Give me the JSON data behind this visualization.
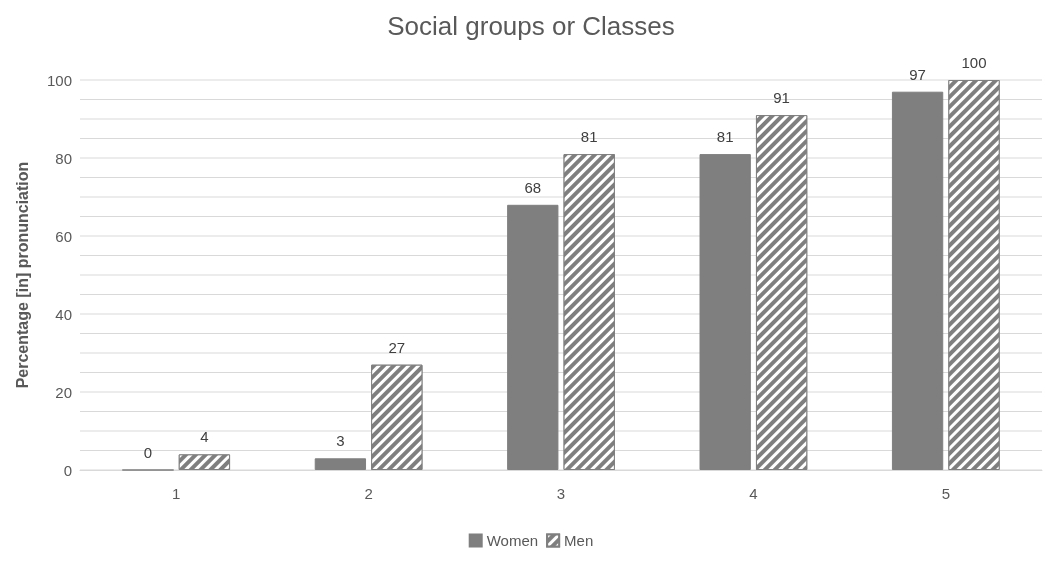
{
  "chart_data": {
    "type": "bar",
    "title": "Social groups or Classes",
    "ylabel": "Percentage [in] pronunciation",
    "categories": [
      "1",
      "2",
      "3",
      "4",
      "5"
    ],
    "series": [
      {
        "name": "Women",
        "color": "#7f7f7f",
        "values": [
          0,
          3,
          68,
          81,
          97
        ]
      },
      {
        "name": "Men",
        "color": "#7f7f7f",
        "values": [
          4,
          27,
          81,
          91,
          100
        ]
      }
    ],
    "ylim": [
      0,
      100
    ],
    "yticks": [
      0,
      {
        "value": 5,
        "label": null
      },
      {
        "value": 10,
        "label": null
      },
      {
        "value": 15,
        "label": null
      },
      20,
      {
        "value": 25,
        "label": null
      },
      {
        "value": 30,
        "label": null
      },
      {
        "value": 35,
        "label": null
      },
      40,
      {
        "value": 45,
        "label": null
      },
      {
        "value": 50,
        "label": null
      },
      {
        "value": 55,
        "label": null
      },
      60,
      {
        "value": 65,
        "label": null
      },
      {
        "value": 70,
        "label": null
      },
      {
        "value": 75,
        "label": null
      },
      80,
      {
        "value": 85,
        "label": null
      },
      {
        "value": 90,
        "label": null
      },
      {
        "value": 95,
        "label": null
      },
      100
    ],
    "grid": "y",
    "legend": "bottom",
    "data_labels": true
  }
}
